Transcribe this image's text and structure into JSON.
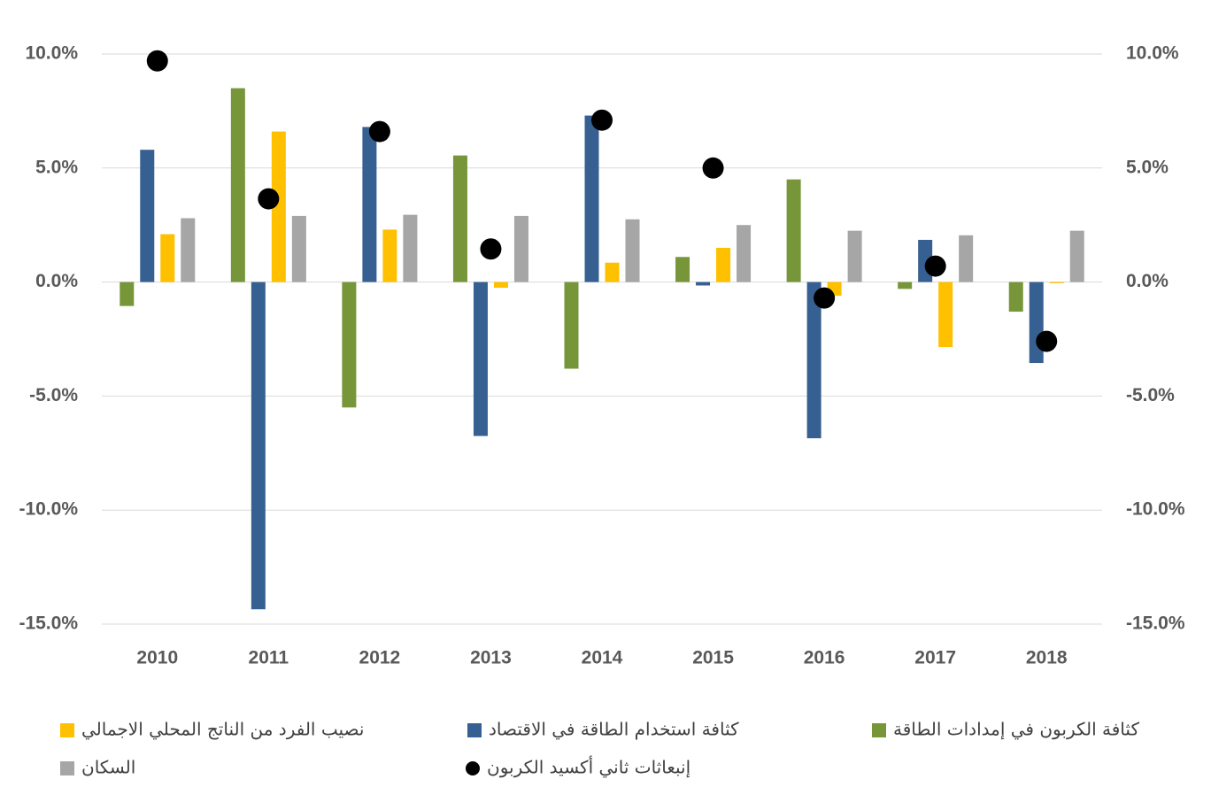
{
  "chart_data": {
    "type": "bar",
    "categories": [
      "2010",
      "2011",
      "2012",
      "2013",
      "2014",
      "2015",
      "2016",
      "2017",
      "2018"
    ],
    "series": [
      {
        "name": "كثافة الكربون في إمدادات الطاقة",
        "color": "#77963a",
        "values": [
          -1.05,
          8.5,
          -5.5,
          5.55,
          -3.8,
          1.1,
          4.5,
          -0.3,
          -1.3
        ]
      },
      {
        "name": "كثافة استخدام الطاقة في الاقتصاد",
        "color": "#376092",
        "values": [
          5.8,
          -14.35,
          6.8,
          -6.75,
          7.3,
          -0.15,
          -6.85,
          1.85,
          -3.55
        ]
      },
      {
        "name": "نصيب الفرد من الناتج المحلي الاجمالي",
        "color": "#ffc000",
        "values": [
          2.1,
          6.6,
          2.3,
          -0.25,
          0.85,
          1.5,
          -0.6,
          -2.85,
          -0.05
        ]
      },
      {
        "name": "السكان",
        "color": "#a6a6a6",
        "values": [
          2.8,
          2.9,
          2.95,
          2.9,
          2.75,
          2.5,
          2.25,
          2.05,
          2.25
        ]
      },
      {
        "name": "إنبعاثات ثاني أكسيد الكربون",
        "color": "#000000",
        "type": "scatter",
        "axis": "y2",
        "values": [
          9.7,
          3.65,
          6.6,
          1.45,
          7.1,
          5.0,
          -0.7,
          0.7,
          -2.6
        ]
      }
    ],
    "ylim": [
      -15,
      10
    ],
    "yticks": [
      {
        "value": -15,
        "label": "-15.0%"
      },
      {
        "value": -10,
        "label": "-10.0%"
      },
      {
        "value": -5,
        "label": "-5.0%"
      },
      {
        "value": 0,
        "label": "0.0%"
      },
      {
        "value": 5,
        "label": "5.0%"
      },
      {
        "value": 10,
        "label": "10.0%"
      }
    ],
    "y2lim": [
      -15,
      10
    ],
    "y2ticks": [
      {
        "value": -15,
        "label": "-15.0%"
      },
      {
        "value": -10,
        "label": "-10.0%"
      },
      {
        "value": -5,
        "label": "-5.0%"
      },
      {
        "value": 0,
        "label": "0.0%"
      },
      {
        "value": 5,
        "label": "5.0%"
      },
      {
        "value": 10,
        "label": "10.0%"
      }
    ],
    "grid": true,
    "legend": "bottom"
  }
}
